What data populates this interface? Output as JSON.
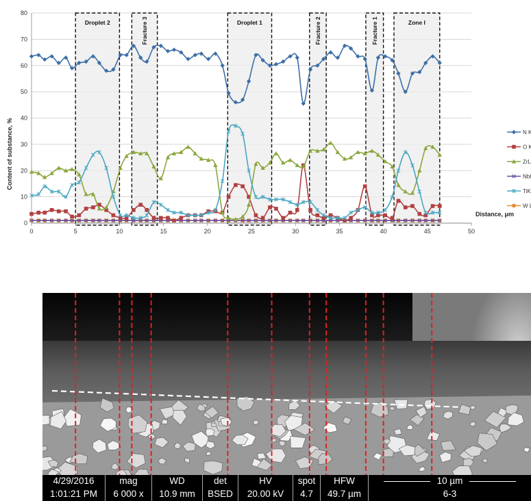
{
  "chart_data": {
    "type": "line",
    "ylabel": "Content of substance, %",
    "xlabel": "Distance, μm",
    "xlim": [
      0,
      50
    ],
    "ylim": [
      0,
      80
    ],
    "xticks": [
      "0",
      "5",
      "10",
      "15",
      "20",
      "25",
      "30",
      "35",
      "40",
      "45",
      "50"
    ],
    "yticks": [
      "0",
      "10",
      "20",
      "30",
      "40",
      "50",
      "60",
      "70",
      "80"
    ],
    "grid": true,
    "legend": "right",
    "zones": [
      {
        "label": "Droplet 2",
        "x0": 5.0,
        "x1": 10.0,
        "vertical": false
      },
      {
        "label": "Fracture 3",
        "x0": 11.4,
        "x1": 14.3,
        "vertical": true
      },
      {
        "label": "Droplet 1",
        "x0": 22.3,
        "x1": 27.3,
        "vertical": false
      },
      {
        "label": "Fracture 2",
        "x0": 31.6,
        "x1": 33.5,
        "vertical": true
      },
      {
        "label": "Fracture 1",
        "x0": 38.0,
        "x1": 40.0,
        "vertical": true
      },
      {
        "label": "Zone I",
        "x0": 41.2,
        "x1": 46.4,
        "vertical": false
      }
    ],
    "x": [
      0,
      0.8,
      1.5,
      2.3,
      3.1,
      3.9,
      4.6,
      5.4,
      6.2,
      7.0,
      7.7,
      8.5,
      9.3,
      10.1,
      10.8,
      11.6,
      12.4,
      13.1,
      13.9,
      14.7,
      15.5,
      16.2,
      17.0,
      17.8,
      18.6,
      19.3,
      20.1,
      20.9,
      21.7,
      22.4,
      23.2,
      24.0,
      24.7,
      25.5,
      26.3,
      27.1,
      27.8,
      28.6,
      29.4,
      30.2,
      30.9,
      31.7,
      32.5,
      33.2,
      34.0,
      34.8,
      35.6,
      36.3,
      37.1,
      37.9,
      38.7,
      39.4,
      40.2,
      41.0,
      41.7,
      42.5,
      43.3,
      44.1,
      44.8,
      45.6,
      46.4
    ],
    "series": [
      {
        "name": "N K",
        "color": "#3d6fa8",
        "marker": "diamond",
        "values": [
          63.5,
          64,
          62.3,
          63.5,
          61,
          63,
          59,
          61,
          61.5,
          63.5,
          61,
          58,
          58.5,
          64,
          64,
          67.5,
          63,
          61.5,
          67,
          67.5,
          65.5,
          66,
          65,
          62.5,
          64,
          64.5,
          62.5,
          64.5,
          60,
          49.5,
          46,
          47,
          54,
          64,
          62,
          60,
          60.5,
          61.5,
          63.5,
          63,
          45.5,
          58.5,
          60,
          62.5,
          65,
          63,
          67.5,
          66.5,
          63.5,
          62.5,
          50.5,
          63,
          63.5,
          62,
          57,
          50,
          57,
          57.5,
          61,
          63.5,
          61
        ]
      },
      {
        "name": "O K",
        "color": "#b24040",
        "marker": "square",
        "values": [
          3.5,
          4,
          4,
          5,
          4.5,
          4.5,
          2.5,
          3,
          5.5,
          6,
          7,
          5,
          3,
          2,
          2,
          5,
          7,
          5,
          2,
          2,
          2,
          1,
          2,
          3,
          3,
          3,
          4.5,
          4.5,
          4,
          10,
          14.5,
          14,
          10,
          3,
          2,
          6,
          5.5,
          2,
          4,
          5,
          22,
          5,
          3,
          2,
          3,
          2,
          1,
          2,
          5,
          14,
          3,
          3,
          3,
          2,
          8.5,
          6,
          6.5,
          3.5,
          3,
          6.5,
          6.5
        ]
      },
      {
        "name": "ZrL",
        "color": "#8aa73d",
        "marker": "triangle",
        "values": [
          19.5,
          19,
          17.5,
          19,
          21,
          20,
          20.5,
          18.5,
          11,
          11,
          5.5,
          6,
          12,
          21,
          25.5,
          27,
          26.5,
          26.5,
          21.5,
          17,
          25,
          26.5,
          27,
          29,
          26.5,
          24.5,
          24,
          22,
          4,
          2,
          1.5,
          2.5,
          7,
          22.5,
          21,
          23,
          26.5,
          23,
          24,
          22,
          21.5,
          27.5,
          27.5,
          28,
          30.5,
          27,
          24.5,
          25,
          27,
          26.5,
          27.5,
          26,
          23.5,
          21.5,
          14.5,
          12,
          11.5,
          20,
          28.5,
          29,
          26
        ]
      },
      {
        "name": "NbL",
        "color": "#6a4f9c",
        "marker": "x",
        "values": [
          1,
          1,
          1,
          1,
          1,
          1,
          1,
          1,
          1,
          1,
          1,
          1,
          1,
          1,
          1,
          1,
          1,
          1,
          1,
          1,
          1,
          1,
          1,
          1,
          1,
          1,
          1,
          1,
          1,
          1,
          1,
          1,
          1,
          1,
          1,
          1,
          1,
          1,
          1,
          1,
          1,
          1,
          1,
          1,
          1,
          1,
          1,
          1,
          1,
          1,
          1,
          1,
          1,
          1,
          1,
          1,
          1,
          1,
          1,
          1,
          1
        ]
      },
      {
        "name": "TiK",
        "color": "#4aa6c2",
        "marker": "star",
        "values": [
          10.5,
          11,
          14,
          12,
          12,
          10,
          14.5,
          15.5,
          21,
          26,
          27,
          21,
          10,
          3,
          3,
          2,
          2,
          3,
          8,
          7,
          5,
          4,
          4,
          3,
          3,
          3,
          4,
          5,
          16,
          35,
          37,
          34,
          20,
          10,
          10,
          9,
          9,
          9,
          8,
          7,
          8,
          8,
          5,
          3,
          2,
          2,
          2,
          4,
          5,
          6,
          4,
          4,
          5,
          10,
          20,
          27,
          22,
          12,
          4,
          4,
          4
        ]
      },
      {
        "name": "W L",
        "color": "#e58c2e",
        "marker": "circle",
        "values": [
          1,
          1,
          1,
          1,
          1,
          1,
          1,
          1,
          1,
          1,
          1,
          1,
          1,
          1,
          1,
          1,
          1,
          1,
          1,
          1,
          1,
          1,
          1,
          1,
          1,
          1,
          1,
          1,
          1,
          1,
          1,
          1,
          1,
          1,
          1,
          1,
          1,
          1,
          1,
          1,
          1,
          1,
          1,
          1,
          1,
          1,
          1,
          1,
          1,
          1,
          1,
          1,
          1,
          1,
          1,
          1,
          1,
          1,
          1,
          1,
          1
        ]
      }
    ]
  },
  "sem_markers_x": [
    5.0,
    10.0,
    11.4,
    13.6,
    22.3,
    27.3,
    31.6,
    33.5,
    38.0,
    40.0,
    45.5
  ],
  "info_bar": {
    "date": "4/29/2016",
    "time": "1:01:21 PM",
    "mag_label": "mag",
    "mag_value": "6 000 x",
    "wd_label": "WD",
    "wd_value": "10.9 mm",
    "det_label": "det",
    "det_value": "BSED",
    "hv_label": "HV",
    "hv_value": "20.00 kV",
    "spot_label": "spot",
    "spot_value": "4.7",
    "hfw_label": "HFW",
    "hfw_value": "49.7 µm",
    "scale_label": "10 µm",
    "sample_id": "6-3"
  },
  "colors": {
    "zone_fill": "#ececec",
    "marker_line": "#e02020",
    "guide": "#ffffff"
  }
}
